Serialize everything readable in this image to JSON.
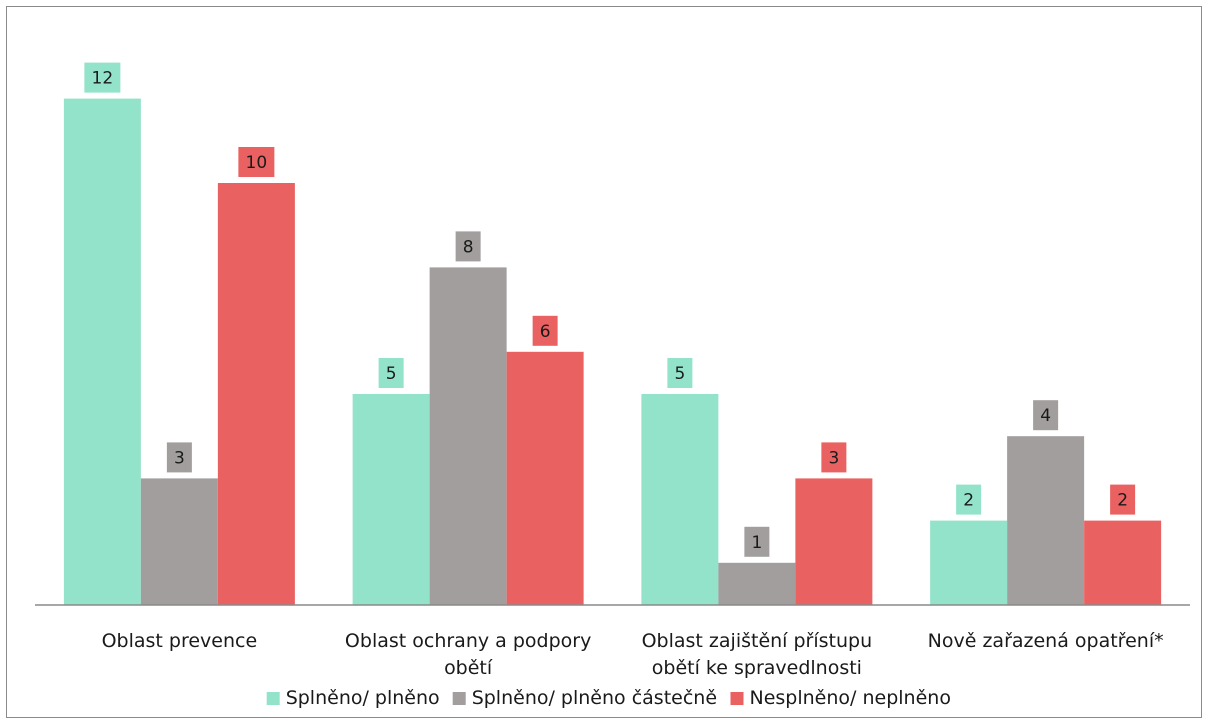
{
  "chart_data": {
    "type": "bar",
    "title": "",
    "xlabel": "",
    "ylabel": "",
    "ylim": [
      0,
      13
    ],
    "grid": false,
    "legend_position": "bottom",
    "categories": [
      [
        "Oblast prevence"
      ],
      [
        "Oblast ochrany a podpory",
        "obětí"
      ],
      [
        "Oblast zajištění přístupu",
        "obětí ke spravedlnosti"
      ],
      [
        "Nově zařazená opatření*"
      ]
    ],
    "series": [
      {
        "name": "Splněno/ plněno",
        "color": "#93e3ca",
        "values": [
          12,
          5,
          5,
          2
        ]
      },
      {
        "name": "Splněno/ plněno částečně",
        "color": "#a19e9d",
        "values": [
          3,
          8,
          1,
          4
        ]
      },
      {
        "name": "Nesplněno/ neplněno",
        "color": "#ea6162",
        "values": [
          10,
          6,
          3,
          2
        ]
      }
    ]
  }
}
